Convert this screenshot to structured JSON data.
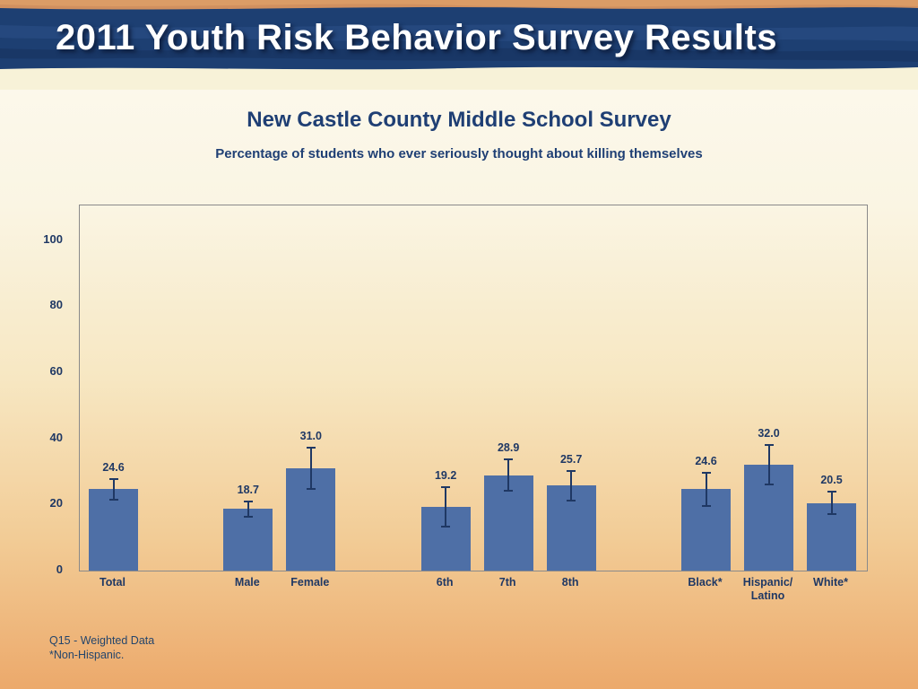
{
  "slide": {
    "banner_title": "2011 Youth Risk Behavior Survey Results",
    "footnote_line1": "Q15 - Weighted Data",
    "footnote_line2": "*Non-Hispanic."
  },
  "chart_data": {
    "type": "bar",
    "title": "New Castle County Middle School Survey",
    "subtitle": "Percentage of students who ever seriously thought about killing themselves",
    "categories": [
      "Total",
      "Male",
      "Female",
      "6th",
      "7th",
      "8th",
      "Black*",
      "Hispanic/\nLatino",
      "White*"
    ],
    "values": [
      24.6,
      18.7,
      31.0,
      19.2,
      28.9,
      25.7,
      24.6,
      32.0,
      20.5
    ],
    "value_labels": [
      "24.6",
      "18.7",
      "31.0",
      "19.2",
      "28.9",
      "25.7",
      "24.6",
      "32.0",
      "20.5"
    ],
    "error_bars": [
      3.2,
      2.3,
      6.3,
      6.0,
      4.8,
      4.5,
      5.0,
      6.0,
      3.5
    ],
    "groups": [
      [
        0
      ],
      [
        1,
        2
      ],
      [
        3,
        4,
        5
      ],
      [
        6,
        7,
        8
      ]
    ],
    "ylim": [
      0,
      100
    ],
    "yticks": [
      0,
      20,
      40,
      60,
      80,
      100
    ],
    "grid": false,
    "legend": false,
    "bar_color": "#4e6fa6",
    "error_color": "#1f3864",
    "label_color": "#1f3864"
  }
}
